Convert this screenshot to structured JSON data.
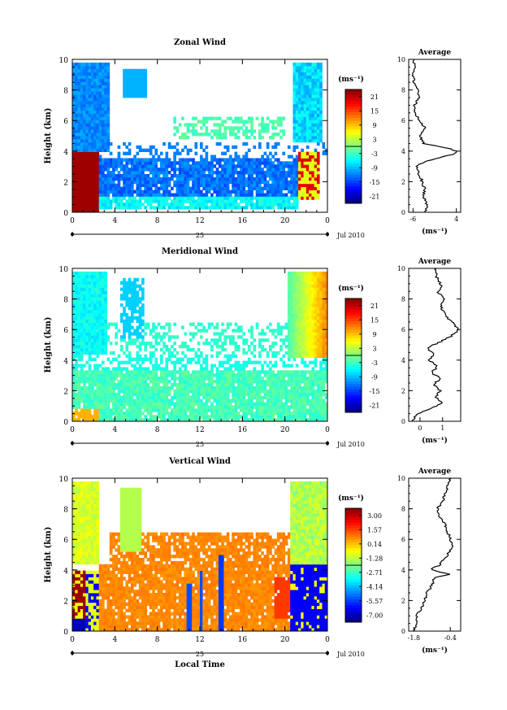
{
  "chart_data": [
    {
      "type": "heatmap",
      "title": "Zonal Wind",
      "ylabel": "Height (km)",
      "xlabel": "",
      "x_ticks": [
        "0",
        "4",
        "8",
        "12",
        "16",
        "20",
        "0"
      ],
      "y_ticks": [
        "0",
        "2",
        "4",
        "6",
        "8",
        "10"
      ],
      "xlim": [
        0,
        24
      ],
      "ylim": [
        0,
        10
      ],
      "day_label": "25",
      "month_label": "Jul 2010",
      "colorbar": {
        "unit": "(ms⁻¹)",
        "ticks": [
          "21",
          "15",
          "9",
          "3",
          "-3",
          "-9",
          "-15",
          "-21"
        ]
      },
      "average": {
        "title": "Average",
        "xlabel": "(ms⁻¹)",
        "x_ticks": [
          "-6",
          "4"
        ],
        "y_ticks": [
          "0",
          "2",
          "4",
          "6",
          "8",
          "10"
        ],
        "xlim": [
          -7,
          5
        ],
        "ylim": [
          0,
          10
        ],
        "profile": {
          "height": [
            0.0,
            0.5,
            1.0,
            1.5,
            2.0,
            2.5,
            3.0,
            3.3,
            3.6,
            3.8,
            4.0,
            4.2,
            4.5,
            5.0,
            5.5,
            6.0,
            6.5,
            7.0,
            7.5,
            8.0,
            8.5,
            9.0,
            9.5,
            10.0
          ],
          "value": [
            -3.0,
            -2.8,
            -3.5,
            -3.3,
            -3.8,
            -4.8,
            -5.0,
            -3.5,
            0.5,
            3.5,
            4.0,
            2.0,
            -3.5,
            -4.5,
            -3.2,
            -4.5,
            -5.5,
            -5.7,
            -4.5,
            -5.0,
            -5.8,
            -6.0,
            -5.6,
            -5.8
          ]
        }
      }
    },
    {
      "type": "heatmap",
      "title": "Meridional Wind",
      "ylabel": "Height (km)",
      "xlabel": "",
      "x_ticks": [
        "0",
        "4",
        "8",
        "12",
        "16",
        "20",
        "0"
      ],
      "y_ticks": [
        "0",
        "2",
        "4",
        "6",
        "8",
        "10"
      ],
      "xlim": [
        0,
        24
      ],
      "ylim": [
        0,
        10
      ],
      "day_label": "25",
      "month_label": "Jul 2010",
      "colorbar": {
        "unit": "(ms⁻¹)",
        "ticks": [
          "21",
          "15",
          "9",
          "3",
          "-3",
          "-9",
          "-15",
          "-21"
        ]
      },
      "average": {
        "title": "Average",
        "xlabel": "(ms⁻¹)",
        "x_ticks": [
          "0",
          "1"
        ],
        "y_ticks": [
          "0",
          "2",
          "4",
          "6",
          "8",
          "10"
        ],
        "xlim": [
          -0.5,
          1.8
        ],
        "ylim": [
          0,
          10
        ],
        "profile": {
          "height": [
            0.0,
            0.4,
            0.8,
            1.2,
            1.6,
            2.0,
            2.4,
            2.8,
            3.2,
            3.6,
            4.0,
            4.4,
            4.8,
            5.2,
            5.6,
            6.0,
            6.4,
            6.8,
            7.2,
            7.6,
            8.0,
            8.4,
            8.8,
            9.2,
            9.6,
            10.0
          ],
          "value": [
            -0.3,
            -0.2,
            0.4,
            1.0,
            0.7,
            0.9,
            0.6,
            0.9,
            0.5,
            0.8,
            0.4,
            0.6,
            0.3,
            0.9,
            1.4,
            1.7,
            1.5,
            1.2,
            1.0,
            0.9,
            1.1,
            0.8,
            1.0,
            0.8,
            0.7,
            0.7
          ]
        }
      }
    },
    {
      "type": "heatmap",
      "title": "Vertical Wind",
      "ylabel": "Height (km)",
      "xlabel": "Local Time",
      "x_ticks": [
        "0",
        "4",
        "8",
        "12",
        "16",
        "20",
        "0"
      ],
      "y_ticks": [
        "0",
        "2",
        "4",
        "6",
        "8",
        "10"
      ],
      "xlim": [
        0,
        24
      ],
      "ylim": [
        0,
        10
      ],
      "day_label": "25",
      "month_label": "Jul 2010",
      "colorbar": {
        "unit": "(ms⁻¹)",
        "ticks": [
          "3.00",
          "1.57",
          "0.14",
          "-1.28",
          "-2.71",
          "-4.14",
          "-5.57",
          "-7.00"
        ]
      },
      "average": {
        "title": "Average",
        "xlabel": "(ms⁻¹)",
        "x_ticks": [
          "-1.8",
          "-0.4"
        ],
        "y_ticks": [
          "0",
          "2",
          "4",
          "6",
          "8",
          "10"
        ],
        "xlim": [
          -2.0,
          0.0
        ],
        "ylim": [
          0,
          10
        ],
        "profile": {
          "height": [
            0.0,
            0.5,
            1.0,
            1.5,
            2.0,
            2.5,
            3.0,
            3.5,
            3.7,
            3.9,
            4.1,
            4.3,
            4.6,
            5.0,
            5.5,
            6.0,
            6.5,
            7.0,
            7.5,
            8.0,
            8.5,
            9.0,
            9.5,
            10.0
          ],
          "value": [
            -1.8,
            -1.7,
            -1.7,
            -1.5,
            -1.4,
            -1.3,
            -1.1,
            -1.0,
            -0.4,
            -0.9,
            -1.2,
            -0.8,
            -0.7,
            -0.5,
            -0.3,
            -0.4,
            -0.5,
            -0.6,
            -0.8,
            -0.9,
            -0.7,
            -0.6,
            -0.5,
            -0.4
          ]
        }
      }
    }
  ]
}
